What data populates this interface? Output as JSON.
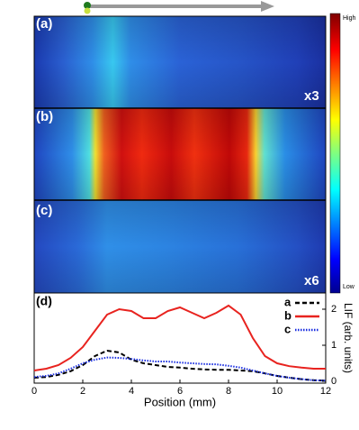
{
  "heatmaps": {
    "panels": [
      {
        "label": "(a)",
        "scale": "x3"
      },
      {
        "label": "(b)"
      },
      {
        "label": "(c)",
        "scale": "x6"
      }
    ],
    "colorbar": {
      "high": "High",
      "low": "Low"
    }
  },
  "chart_data": {
    "type": "line",
    "label": "(d)",
    "xlabel": "Position (mm)",
    "ylabel": "LIF (arb. units)",
    "y_axis_side": "right",
    "x": [
      0,
      0.5,
      1,
      1.5,
      2,
      2.5,
      3,
      3.5,
      4,
      4.5,
      5,
      5.5,
      6,
      6.5,
      7,
      7.5,
      8,
      8.5,
      9,
      9.5,
      10,
      10.5,
      11,
      11.5,
      12
    ],
    "series": [
      {
        "name": "a",
        "color": "#000000",
        "style": "dashed",
        "values": [
          0.1,
          0.12,
          0.18,
          0.28,
          0.45,
          0.7,
          0.85,
          0.8,
          0.6,
          0.5,
          0.45,
          0.4,
          0.38,
          0.35,
          0.33,
          0.32,
          0.32,
          0.3,
          0.28,
          0.22,
          0.15,
          0.1,
          0.06,
          0.03,
          0.02
        ]
      },
      {
        "name": "b",
        "color": "#e8231f",
        "style": "solid",
        "values": [
          0.3,
          0.35,
          0.45,
          0.65,
          0.95,
          1.4,
          1.85,
          2.0,
          1.95,
          1.75,
          1.75,
          1.95,
          2.05,
          1.9,
          1.75,
          1.9,
          2.1,
          1.85,
          1.2,
          0.7,
          0.5,
          0.42,
          0.38,
          0.35,
          0.35
        ]
      },
      {
        "name": "c",
        "color": "#1a2ee0",
        "style": "dotted",
        "values": [
          0.12,
          0.15,
          0.22,
          0.35,
          0.5,
          0.6,
          0.66,
          0.65,
          0.62,
          0.58,
          0.55,
          0.55,
          0.52,
          0.5,
          0.48,
          0.47,
          0.43,
          0.38,
          0.3,
          0.22,
          0.15,
          0.1,
          0.06,
          0.03,
          0.02
        ]
      }
    ],
    "xlim": [
      0,
      12
    ],
    "xticks": [
      0,
      2,
      4,
      6,
      8,
      10,
      12
    ],
    "ylim": [
      -0.05,
      2.45
    ],
    "yticks": [
      0,
      1,
      2
    ]
  }
}
